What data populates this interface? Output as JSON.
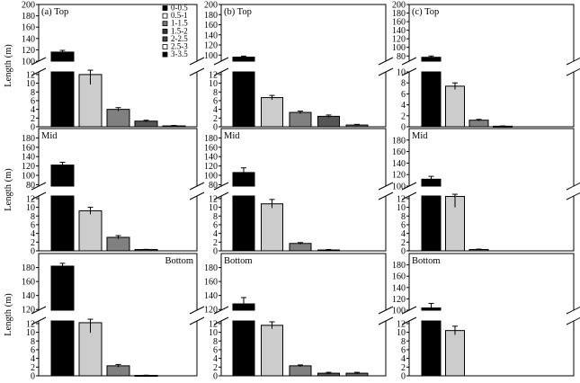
{
  "ylabel": "Length (m)",
  "legend": {
    "items": [
      {
        "label": "0-0.5",
        "color": "#000000"
      },
      {
        "label": "0.5-1",
        "color": "#ffffff"
      },
      {
        "label": "1-1.5",
        "color": "#777777"
      },
      {
        "label": "1.5-2",
        "color": "#333333"
      },
      {
        "label": "2-2.5",
        "color": "#444444"
      },
      {
        "label": "2.5-3",
        "color": "#ffffff"
      },
      {
        "label": "3-3.5",
        "color": "#000000"
      }
    ]
  },
  "bar_colors": [
    "#000000",
    "#cccccc",
    "#808080",
    "#555555",
    "#666666"
  ],
  "chart_data": [
    {
      "type": "bar",
      "title": "(a) Top",
      "categories": [
        "0-0.5",
        "0.5-1",
        "1-1.5",
        "1.5-2",
        "2-2.5"
      ],
      "values": [
        116,
        12,
        4.0,
        1.3,
        0.2
      ],
      "errors": [
        3,
        2.3,
        0.4,
        0.2,
        0.1
      ],
      "ylim_upper": [
        100,
        200
      ],
      "ylim_lower": [
        0,
        12.6
      ],
      "upper_ticks": [
        "200",
        "180",
        "160",
        "140",
        "120",
        "100"
      ],
      "lower_ticks": [
        "12",
        "10",
        "8",
        "6",
        "4",
        "2",
        "0"
      ]
    },
    {
      "type": "bar",
      "title": "(b) Top",
      "categories": [
        "0-0.5",
        "0.5-1",
        "1-1.5",
        "1.5-2",
        "2-2.5"
      ],
      "values": [
        96,
        6.7,
        3.3,
        2.4,
        0.4
      ],
      "errors": [
        2,
        0.5,
        0.3,
        0.3,
        0.15
      ],
      "ylim_upper": [
        88,
        200
      ],
      "ylim_lower": [
        0,
        12.6
      ],
      "upper_ticks": [
        "200",
        "180",
        "160",
        "140",
        "120",
        "100"
      ],
      "lower_ticks": [
        "12",
        "10",
        "8",
        "6",
        "4",
        "2",
        "0"
      ]
    },
    {
      "type": "bar",
      "title": "(c) Top",
      "categories": [
        "0-0.5",
        "0.5-1",
        "1-1.5",
        "1.5-2"
      ],
      "values": [
        77,
        7.4,
        1.2,
        0.1
      ],
      "errors": [
        3,
        0.6,
        0.15,
        0.05
      ],
      "ylim_upper": [
        68,
        200
      ],
      "ylim_lower": [
        0,
        10
      ],
      "upper_ticks": [
        "200",
        "180",
        "160",
        "140",
        "120",
        "100",
        "80"
      ],
      "lower_ticks": [
        "10",
        "8",
        "6",
        "4",
        "2",
        "0"
      ]
    },
    {
      "type": "bar",
      "title": "Mid",
      "categories": [
        "0-0.5",
        "0.5-1",
        "1-1.5",
        "1.5-2"
      ],
      "values": [
        122,
        9.2,
        3.1,
        0.3
      ],
      "errors": [
        6,
        0.8,
        0.4,
        0.05
      ],
      "ylim_upper": [
        77,
        200
      ],
      "ylim_lower": [
        0,
        12.6
      ],
      "upper_ticks": [
        "180",
        "160",
        "140",
        "120",
        "100",
        "80"
      ],
      "lower_ticks": [
        "12",
        "10",
        "8",
        "6",
        "4",
        "2",
        "0"
      ]
    },
    {
      "type": "bar",
      "title": "Mid",
      "categories": [
        "0-0.5",
        "0.5-1",
        "1-1.5",
        "1.5-2"
      ],
      "values": [
        106,
        10.8,
        1.7,
        0.2
      ],
      "errors": [
        10,
        1,
        0.2,
        0.1
      ],
      "ylim_upper": [
        77,
        200
      ],
      "ylim_lower": [
        0,
        12.6
      ],
      "upper_ticks": [
        "180",
        "160",
        "140",
        "120",
        "100",
        "80"
      ],
      "lower_ticks": [
        "12",
        "10",
        "8",
        "6",
        "4",
        "2",
        "0"
      ]
    },
    {
      "type": "bar",
      "title": "Mid",
      "categories": [
        "0-0.5",
        "0.5-1",
        "1-1.5"
      ],
      "values": [
        112,
        12.5,
        0.3
      ],
      "errors": [
        5,
        2.5,
        0.1
      ],
      "ylim_upper": [
        100,
        200
      ],
      "ylim_lower": [
        0,
        12.6
      ],
      "upper_ticks": [
        "180",
        "160",
        "140",
        "120",
        "100"
      ],
      "lower_ticks": [
        "12",
        "10",
        "8",
        "6",
        "4",
        "2",
        "0"
      ]
    },
    {
      "type": "bar",
      "title": "Bottom",
      "categories": [
        "0-0.5",
        "0.5-1",
        "1-1.5",
        "1.5-2"
      ],
      "values": [
        182,
        12.2,
        2.3,
        0.1
      ],
      "errors": [
        4,
        2.3,
        0.3,
        0.05
      ],
      "ylim_upper": [
        119,
        200
      ],
      "ylim_lower": [
        0,
        12.6
      ],
      "upper_ticks": [
        "180",
        "160",
        "140",
        "120"
      ],
      "lower_ticks": [
        "12",
        "10",
        "8",
        "6",
        "4",
        "2",
        "0"
      ]
    },
    {
      "type": "bar",
      "title": "Bottom",
      "categories": [
        "0-0.5",
        "0.5-1",
        "1-1.5",
        "1.5-2",
        "2-2.5"
      ],
      "values": [
        128,
        11.6,
        2.3,
        0.6,
        0.6
      ],
      "errors": [
        9,
        0.8,
        0.2,
        0.2,
        0.2
      ],
      "ylim_upper": [
        119,
        200
      ],
      "ylim_lower": [
        0,
        12.6
      ],
      "upper_ticks": [
        "180",
        "160",
        "140",
        "120"
      ],
      "lower_ticks": [
        "12",
        "10",
        "8",
        "6",
        "4",
        "2",
        "0"
      ]
    },
    {
      "type": "bar",
      "title": "Bottom",
      "categories": [
        "0-0.5",
        "0.5-1"
      ],
      "values": [
        104,
        10.4
      ],
      "errors": [
        8,
        1
      ],
      "ylim_upper": [
        100,
        200
      ],
      "ylim_lower": [
        0,
        12.6
      ],
      "upper_ticks": [
        "180",
        "160",
        "140",
        "120",
        "100"
      ],
      "lower_ticks": [
        "12",
        "10",
        "8",
        "6",
        "4",
        "2",
        "0"
      ]
    }
  ]
}
